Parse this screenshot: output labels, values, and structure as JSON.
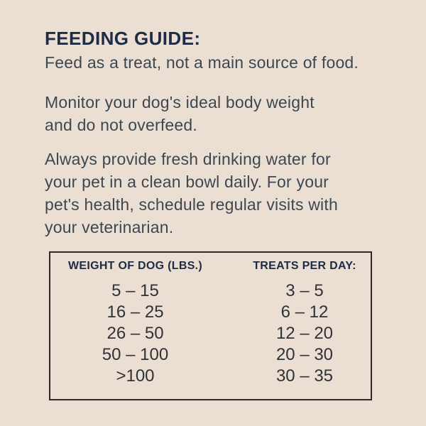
{
  "label": {
    "title": "FEEDING GUIDE:",
    "paragraphs": [
      {
        "lines": [
          "Feed as a treat, not a main source of food."
        ]
      },
      {
        "lines": [
          "Monitor your dog's ideal body weight",
          "and do not overfeed."
        ]
      },
      {
        "lines": [
          "Always provide fresh drinking water for",
          "your pet in a clean bowl daily. For your",
          "pet's health, schedule regular visits with",
          "your veterinarian."
        ]
      }
    ]
  },
  "feeding_table": {
    "headers": {
      "weight": "WEIGHT OF DOG (LBS.)",
      "treats": "TREATS PER DAY:"
    },
    "rows": [
      {
        "weight": "5 – 15",
        "treats": "3 – 5"
      },
      {
        "weight": "16 – 25",
        "treats": "6 – 12"
      },
      {
        "weight": "26 – 50",
        "treats": "12 – 20"
      },
      {
        "weight": "50 – 100",
        "treats": "20 – 30"
      },
      {
        "weight": ">100",
        "treats": "30 – 35"
      }
    ]
  },
  "colors": {
    "background": "#ebdfd3",
    "heading": "#1d2b45",
    "body_text": "#3d4751",
    "table_text": "#2f3236",
    "table_border": "#2b2b2b"
  }
}
